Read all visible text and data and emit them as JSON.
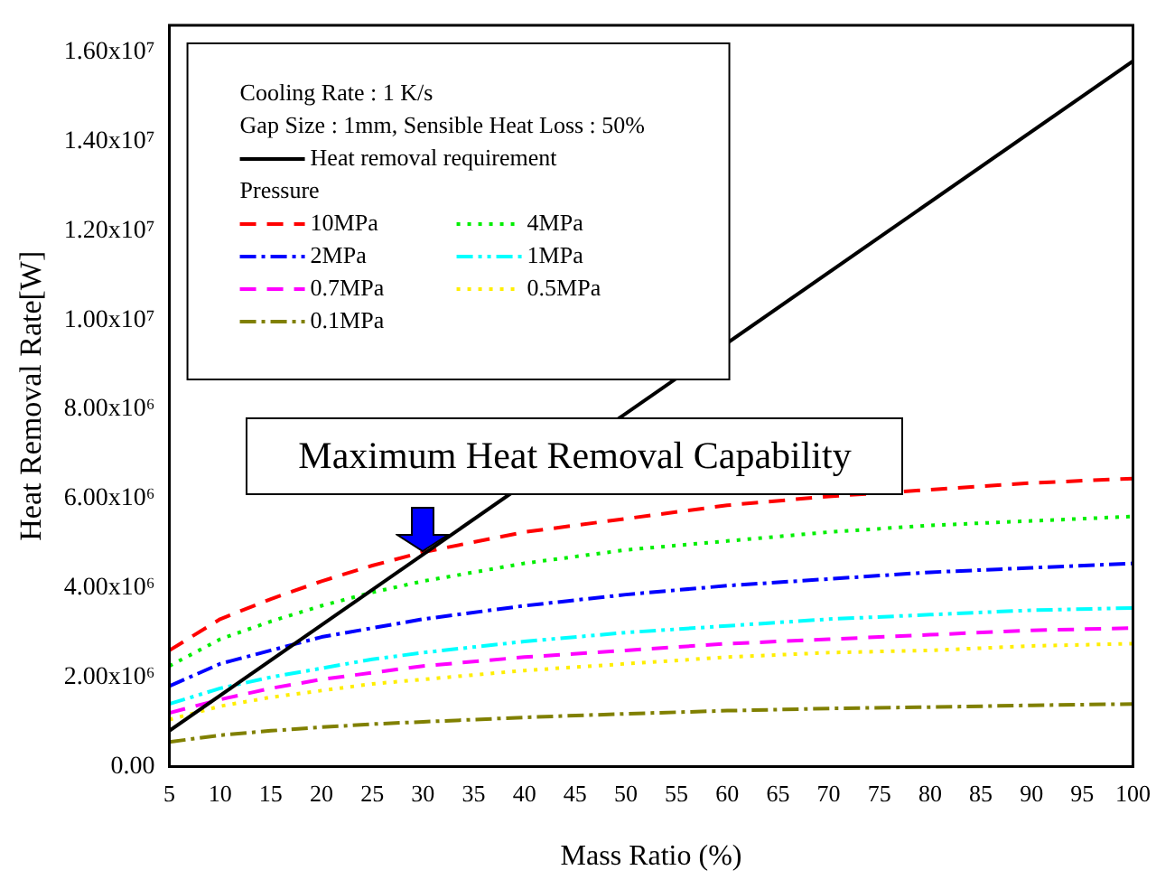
{
  "chart_data": {
    "type": "line",
    "xlabel": "Mass Ratio (%)",
    "ylabel": "Heat Removal Rate[W]",
    "legend_title": "Pressure",
    "annotations": [
      "Cooling Rate : 1 K/s",
      "Gap Size : 1mm, Sensible Heat Loss : 50%",
      {
        "text": "Maximum Heat Removal Capability",
        "x": 30,
        "y": 4800000
      }
    ],
    "x": [
      5,
      10,
      15,
      20,
      25,
      30,
      40,
      50,
      60,
      70,
      80,
      90,
      100
    ],
    "series": [
      {
        "name": "Heat removal requirement",
        "color": "#000000",
        "line_style": "solid",
        "x": [
          5,
          100
        ],
        "values": [
          800000,
          15800000
        ]
      },
      {
        "name": "10MPa",
        "color": "#ff0000",
        "line_style": "dashed",
        "values": [
          2600000,
          3300000,
          3750000,
          4150000,
          4500000,
          4800000,
          5250000,
          5550000,
          5850000,
          6050000,
          6200000,
          6350000,
          6450000
        ]
      },
      {
        "name": "4MPa",
        "color": "#00ee00",
        "line_style": "dotted",
        "values": [
          2250000,
          2850000,
          3250000,
          3600000,
          3900000,
          4150000,
          4550000,
          4850000,
          5050000,
          5250000,
          5400000,
          5500000,
          5600000
        ]
      },
      {
        "name": "2MPa",
        "color": "#0000ff",
        "line_style": "dashdot",
        "values": [
          1800000,
          2300000,
          2600000,
          2900000,
          3100000,
          3300000,
          3600000,
          3850000,
          4050000,
          4200000,
          4350000,
          4450000,
          4550000
        ]
      },
      {
        "name": "1MPa",
        "color": "#00ffff",
        "line_style": "dashdotdot",
        "values": [
          1400000,
          1750000,
          2000000,
          2200000,
          2400000,
          2550000,
          2800000,
          3000000,
          3150000,
          3300000,
          3400000,
          3500000,
          3550000
        ]
      },
      {
        "name": "0.7MPa",
        "color": "#ff00ff",
        "line_style": "dashed",
        "values": [
          1200000,
          1500000,
          1750000,
          1950000,
          2100000,
          2250000,
          2450000,
          2600000,
          2750000,
          2850000,
          2950000,
          3050000,
          3100000
        ]
      },
      {
        "name": "0.5MPa",
        "color": "#ffee00",
        "line_style": "dotted",
        "values": [
          1050000,
          1350000,
          1550000,
          1700000,
          1850000,
          1950000,
          2150000,
          2300000,
          2450000,
          2550000,
          2600000,
          2700000,
          2750000
        ]
      },
      {
        "name": "0.1MPa",
        "color": "#808000",
        "line_style": "dashdot",
        "values": [
          550000,
          700000,
          800000,
          880000,
          950000,
          1000000,
          1100000,
          1180000,
          1250000,
          1300000,
          1330000,
          1370000,
          1400000
        ]
      }
    ],
    "xlim": [
      5,
      100
    ],
    "xticks": [
      5,
      10,
      15,
      20,
      25,
      30,
      35,
      40,
      45,
      50,
      55,
      60,
      65,
      70,
      75,
      80,
      85,
      90,
      95,
      100
    ],
    "ylim": [
      0,
      16600000
    ],
    "yticks": [
      {
        "value": 0,
        "label": "0.00"
      },
      {
        "value": 2000000,
        "label": "2.00x10⁶"
      },
      {
        "value": 4000000,
        "label": "4.00x10⁶"
      },
      {
        "value": 6000000,
        "label": "6.00x10⁶"
      },
      {
        "value": 8000000,
        "label": "8.00x10⁶"
      },
      {
        "value": 10000000,
        "label": "1.00x10⁷"
      },
      {
        "value": 12000000,
        "label": "1.20x10⁷"
      },
      {
        "value": 14000000,
        "label": "1.40x10⁷"
      },
      {
        "value": 16000000,
        "label": "1.60x10⁷"
      }
    ],
    "grid": false,
    "legend": "top left",
    "marker": "none"
  }
}
